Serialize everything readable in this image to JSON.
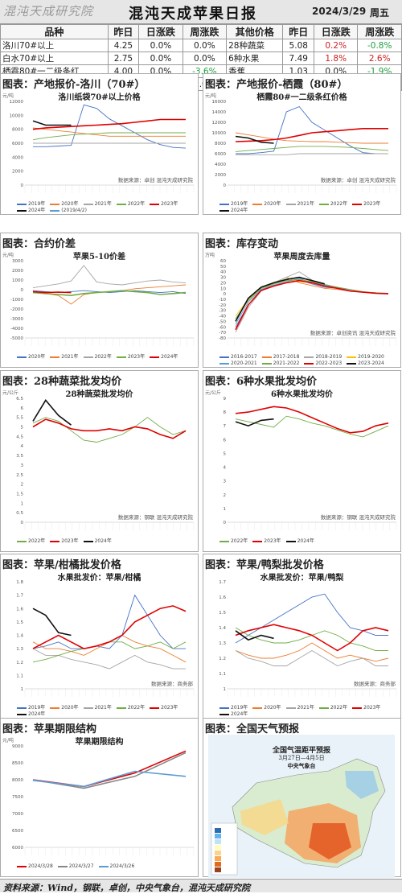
{
  "header": {
    "logo": "混沌天成研究院",
    "title": "混沌天成苹果日报",
    "date": "2024/3/29",
    "weekday": "周五"
  },
  "table": {
    "headers": [
      "品种",
      "昨日",
      "日涨跌",
      "周涨跌",
      "其他价格",
      "昨日",
      "日涨跌",
      "周涨跌"
    ],
    "rows": [
      [
        "洛川70#以上",
        "4.25",
        "0.0%",
        "0.0%",
        "28种蔬菜",
        "5.08",
        "0.2%",
        "-0.8%"
      ],
      [
        "白水70#以上",
        "2.75",
        "0.0%",
        "0.0%",
        "6种水果",
        "7.49",
        "1.8%",
        "2.6%"
      ],
      [
        "栖霞80#一二级条红",
        "4.00",
        "0.0%",
        "-3.6%",
        "香蕉",
        "1.03",
        "0.0%",
        "-1.9%"
      ],
      [
        "蓬莱80#一二级",
        "4.15",
        "0.0%",
        "0.0%",
        "红枣",
        "6.03",
        "0.0%",
        "0.0%"
      ]
    ]
  },
  "panels": [
    {
      "title": "图表：产地报价-洛川（70#）",
      "chart_title": "洛川纸袋70#以上价格",
      "unit": "元/吨",
      "source": "数据来源：卓创   混沌天成研究院",
      "legend": [
        "2019年",
        "2020年",
        "2021年",
        "2022年",
        "2023年",
        "2024年",
        "(2019/4/2)"
      ]
    },
    {
      "title": "图表：产地报价-栖霞（80#）",
      "chart_title": "栖霞80#一二级条红价格",
      "unit": "元/吨",
      "source": "数据来源：卓创   混沌天成研究院",
      "legend": [
        "2019年",
        "2020年",
        "2021年",
        "2022年",
        "2023年",
        "2024年"
      ]
    },
    {
      "title": "图表：合约价差",
      "chart_title": "苹果5-10价差",
      "unit": "元/吨",
      "source": "",
      "legend": [
        "2020年",
        "2021年",
        "2022年",
        "2023年",
        "2024年"
      ]
    },
    {
      "title": "图表：库存变动",
      "chart_title": "苹果周度去库量",
      "unit": "万吨",
      "source": "数据来源：卓创资讯   混沌天成研究院",
      "legend": [
        "2016-2017",
        "2017-2018",
        "2018-2019",
        "2019-2020",
        "2020-2021",
        "2021-2022",
        "2022-2023",
        "2023-2024"
      ]
    },
    {
      "title": "图表：28种蔬菜批发均价",
      "chart_title": "28种蔬菜批发均价",
      "unit": "元/公斤",
      "source": "数据来源：钢联   混沌天成研究院",
      "legend": [
        "2022年",
        "2023年",
        "2024年"
      ]
    },
    {
      "title": "图表：6种水果批发均价",
      "chart_title": "6种水果批发均价",
      "unit": "元/公斤",
      "source": "数据来源：钢联   混沌天成研究院",
      "legend": [
        "2022年",
        "2023年",
        "2024年"
      ]
    },
    {
      "title": "图表：苹果/柑橘批发价格",
      "chart_title": "水果批发价：苹果/柑橘",
      "unit": "",
      "source": "数据来源：商务部",
      "legend": [
        "2019年",
        "2020年",
        "2021年",
        "2022年",
        "2023年",
        "2024年"
      ]
    },
    {
      "title": "图表：苹果/鸭梨批发价格",
      "chart_title": "水果批发价：苹果/鸭梨",
      "unit": "",
      "source": "数据来源：商务部",
      "legend": [
        "2019年",
        "2020年",
        "2021年",
        "2022年",
        "2023年",
        "2024年"
      ]
    },
    {
      "title": "图表：苹果期限结构",
      "chart_title": "苹果期限结构",
      "unit": "元/吨",
      "source": "",
      "legend": [
        "2024/3/28",
        "2024/3/27",
        "2024/3/26"
      ]
    },
    {
      "title": "图表：全国天气预报",
      "chart_title": "全国气温距平预报",
      "subtitle": "3月27日—4月5日",
      "agency": "中央气象台",
      "unit": "",
      "source": "",
      "legend": []
    }
  ],
  "colors": {
    "y2019": "#4472c4",
    "y2020": "#ed7d31",
    "y2021": "#a5a5a5",
    "y2022": "#70ad47",
    "y2023": "#e00000",
    "y2024": "#111111",
    "alt": "#5b9bd5"
  },
  "chart_data": [
    {
      "type": "line",
      "title": "洛川纸袋70#以上价格",
      "ylim": [
        0,
        12000
      ],
      "yticks": [
        0,
        2000,
        4000,
        6000,
        8000,
        10000,
        12000
      ],
      "series": [
        {
          "name": "2019年",
          "values": [
            5500,
            5500,
            5600,
            5700,
            11500,
            11000,
            9500,
            8500,
            7500,
            6500,
            5800,
            5400,
            5300
          ]
        },
        {
          "name": "2020年",
          "values": [
            8200,
            8000,
            7800,
            7600,
            7400,
            7200,
            7000,
            7000,
            7000,
            7000,
            7000,
            7000,
            7000
          ]
        },
        {
          "name": "2021年",
          "values": [
            6000,
            6000,
            6000,
            6000,
            6000,
            6000,
            6000,
            6000,
            6000,
            6000,
            6000,
            6000,
            6000
          ]
        },
        {
          "name": "2022年",
          "values": [
            6500,
            6800,
            7000,
            7200,
            7300,
            7400,
            7500,
            7500,
            7500,
            7500,
            7500,
            7500,
            7500
          ]
        },
        {
          "name": "2023年",
          "values": [
            8000,
            8200,
            8300,
            8400,
            8500,
            8600,
            8700,
            8800,
            9000,
            9200,
            9400,
            9400,
            9400
          ]
        },
        {
          "name": "2024年",
          "values": [
            9200,
            8600,
            8600,
            8600,
            null,
            null,
            null,
            null,
            null,
            null,
            null,
            null,
            null
          ]
        }
      ]
    },
    {
      "type": "line",
      "title": "栖霞80#一二级条红价格",
      "ylim": [
        0,
        16000
      ],
      "yticks": [
        0,
        2000,
        4000,
        6000,
        8000,
        10000,
        12000,
        14000,
        16000
      ],
      "series": [
        {
          "name": "2019年",
          "values": [
            6000,
            6000,
            6200,
            6500,
            14000,
            15000,
            12000,
            10500,
            9000,
            7500,
            6200,
            6000,
            6000
          ]
        },
        {
          "name": "2020年",
          "values": [
            10000,
            9600,
            9200,
            8800,
            8500,
            8400,
            8300,
            8300,
            8200,
            8100,
            8000,
            8000,
            8000
          ]
        },
        {
          "name": "2021年",
          "values": [
            5800,
            5800,
            5800,
            5800,
            5800,
            6000,
            6000,
            6000,
            6000,
            6000,
            6000,
            6000,
            6000
          ]
        },
        {
          "name": "2022年",
          "values": [
            6400,
            6600,
            6800,
            7000,
            7200,
            7400,
            7400,
            7400,
            7300,
            7200,
            7000,
            6800,
            6600
          ]
        },
        {
          "name": "2023年",
          "values": [
            8300,
            8400,
            8500,
            8700,
            9000,
            9500,
            10000,
            10200,
            10400,
            10600,
            10800,
            10800,
            10800
          ]
        },
        {
          "name": "2024年",
          "values": [
            9300,
            9000,
            8200,
            8000,
            null,
            null,
            null,
            null,
            null,
            null,
            null,
            null,
            null
          ]
        }
      ]
    },
    {
      "type": "line",
      "title": "苹果5-10价差",
      "ylim": [
        -5000,
        3000
      ],
      "yticks": [
        -5000,
        -4000,
        -3000,
        -2000,
        -1000,
        0,
        1000,
        2000,
        3000
      ],
      "series": [
        {
          "name": "2020年",
          "values": [
            -100,
            -200,
            -300,
            -200,
            -100,
            -200,
            -300,
            -200,
            -100,
            -200,
            -300,
            -200,
            -400
          ]
        },
        {
          "name": "2021年",
          "values": [
            -300,
            -400,
            -600,
            -1500,
            -500,
            -300,
            -200,
            -100,
            100,
            200,
            300,
            400,
            500
          ]
        },
        {
          "name": "2022年",
          "values": [
            200,
            400,
            600,
            900,
            2500,
            800,
            600,
            500,
            700,
            900,
            1000,
            800,
            700
          ]
        },
        {
          "name": "2023年",
          "values": [
            -300,
            -400,
            -500,
            -600,
            -400,
            -300,
            -200,
            -100,
            -200,
            -300,
            -500,
            -400,
            -300
          ]
        },
        {
          "name": "2024年",
          "values": [
            -200,
            -300,
            -250,
            -300,
            null,
            null,
            null,
            null,
            null,
            null,
            null,
            null,
            null
          ]
        }
      ]
    },
    {
      "type": "line",
      "title": "苹果周度去库量",
      "ylim": [
        -80,
        60
      ],
      "yticks": [
        -80,
        -70,
        -60,
        -50,
        -40,
        -30,
        -20,
        -10,
        0,
        10,
        20,
        30,
        40,
        50,
        60
      ],
      "series": [
        {
          "name": "2016-2017",
          "values": [
            -60,
            -20,
            5,
            15,
            20,
            25,
            18,
            12,
            10,
            5,
            3,
            2,
            1
          ]
        },
        {
          "name": "2017-2018",
          "values": [
            -50,
            -10,
            10,
            20,
            30,
            20,
            15,
            10,
            8,
            5,
            3,
            2,
            0
          ]
        },
        {
          "name": "2018-2019",
          "values": [
            -70,
            -25,
            5,
            20,
            30,
            40,
            25,
            15,
            10,
            6,
            3,
            1,
            0
          ]
        },
        {
          "name": "2019-2020",
          "values": [
            -40,
            -10,
            10,
            18,
            25,
            22,
            20,
            15,
            10,
            5,
            3,
            1,
            0
          ]
        },
        {
          "name": "2020-2021",
          "values": [
            -55,
            -15,
            8,
            16,
            22,
            28,
            20,
            16,
            12,
            6,
            3,
            1,
            0
          ]
        },
        {
          "name": "2021-2022",
          "values": [
            -45,
            -12,
            10,
            18,
            24,
            26,
            22,
            17,
            12,
            8,
            4,
            2,
            0
          ]
        },
        {
          "name": "2022-2023",
          "values": [
            -65,
            -20,
            6,
            14,
            20,
            24,
            20,
            14,
            10,
            5,
            3,
            1,
            0
          ]
        },
        {
          "name": "2023-2024",
          "values": [
            -50,
            -8,
            12,
            20,
            26,
            30,
            24,
            18,
            null,
            null,
            null,
            null,
            null
          ]
        }
      ]
    },
    {
      "type": "line",
      "title": "28种蔬菜批发均价",
      "ylim": [
        0,
        6.5
      ],
      "yticks": [
        0,
        0.5,
        1,
        1.5,
        2,
        2.5,
        3,
        3.5,
        4,
        4.5,
        5,
        5.5,
        6,
        6.5
      ],
      "series": [
        {
          "name": "2022年",
          "values": [
            5.2,
            5.5,
            5.3,
            4.8,
            4.3,
            4.2,
            4.4,
            4.6,
            5.0,
            5.5,
            5.0,
            4.6,
            4.8
          ]
        },
        {
          "name": "2023年",
          "values": [
            5.0,
            5.4,
            5.2,
            4.9,
            4.8,
            4.8,
            4.9,
            4.8,
            5.0,
            4.9,
            4.6,
            4.4,
            4.8
          ]
        },
        {
          "name": "2024年",
          "values": [
            5.3,
            6.4,
            5.6,
            5.1,
            null,
            null,
            null,
            null,
            null,
            null,
            null,
            null,
            null
          ]
        }
      ]
    },
    {
      "type": "line",
      "title": "6种水果批发均价",
      "ylim": [
        0,
        9
      ],
      "yticks": [
        0,
        1,
        2,
        3,
        4,
        5,
        6,
        7,
        8,
        9
      ],
      "series": [
        {
          "name": "2022年",
          "values": [
            7.5,
            7.3,
            7.1,
            6.9,
            7.7,
            7.5,
            7.2,
            7.0,
            6.7,
            6.4,
            6.2,
            6.6,
            7.0
          ]
        },
        {
          "name": "2023年",
          "values": [
            7.9,
            8.0,
            8.2,
            8.4,
            8.3,
            8.0,
            7.6,
            7.2,
            6.8,
            6.5,
            6.6,
            7.0,
            7.2
          ]
        },
        {
          "name": "2024年",
          "values": [
            7.3,
            7.0,
            7.4,
            7.5,
            null,
            null,
            null,
            null,
            null,
            null,
            null,
            null,
            null
          ]
        }
      ]
    },
    {
      "type": "line",
      "title": "水果批发价：苹果/柑橘",
      "ylim": [
        1,
        1.8
      ],
      "yticks": [
        1,
        1.1,
        1.2,
        1.3,
        1.4,
        1.5,
        1.6,
        1.7,
        1.8
      ],
      "series": [
        {
          "name": "2019年",
          "values": [
            1.3,
            1.32,
            1.35,
            1.3,
            1.3,
            1.32,
            1.3,
            1.4,
            1.7,
            1.55,
            1.4,
            1.3,
            1.3
          ]
        },
        {
          "name": "2020年",
          "values": [
            1.35,
            1.3,
            1.3,
            1.28,
            1.25,
            1.3,
            1.35,
            1.4,
            1.35,
            1.32,
            1.3,
            1.25,
            1.2
          ]
        },
        {
          "name": "2021年",
          "values": [
            1.3,
            1.25,
            1.25,
            1.22,
            1.2,
            1.18,
            1.15,
            1.2,
            1.25,
            1.2,
            1.18,
            1.15,
            1.15
          ]
        },
        {
          "name": "2022年",
          "values": [
            1.2,
            1.22,
            1.25,
            1.28,
            1.3,
            1.32,
            1.35,
            1.35,
            1.3,
            1.32,
            1.35,
            1.3,
            1.35
          ]
        },
        {
          "name": "2023年",
          "values": [
            1.3,
            1.35,
            1.4,
            1.35,
            1.3,
            1.32,
            1.35,
            1.4,
            1.5,
            1.55,
            1.6,
            1.62,
            1.58
          ]
        },
        {
          "name": "2024年",
          "values": [
            1.6,
            1.55,
            1.42,
            1.4,
            null,
            null,
            null,
            null,
            null,
            null,
            null,
            null,
            null
          ]
        }
      ]
    },
    {
      "type": "line",
      "title": "水果批发价：苹果/鸭梨",
      "ylim": [
        1,
        1.7
      ],
      "yticks": [
        1,
        1.1,
        1.2,
        1.3,
        1.4,
        1.5,
        1.6,
        1.7
      ],
      "series": [
        {
          "name": "2019年",
          "values": [
            1.3,
            1.35,
            1.4,
            1.45,
            1.5,
            1.55,
            1.6,
            1.62,
            1.5,
            1.4,
            1.38,
            1.35,
            1.35
          ]
        },
        {
          "name": "2020年",
          "values": [
            1.25,
            1.22,
            1.2,
            1.2,
            1.22,
            1.25,
            1.3,
            1.25,
            1.2,
            1.22,
            1.2,
            1.18,
            1.2
          ]
        },
        {
          "name": "2021年",
          "values": [
            1.25,
            1.2,
            1.18,
            1.15,
            1.15,
            1.2,
            1.25,
            1.2,
            1.15,
            1.18,
            1.2,
            1.15,
            1.15
          ]
        },
        {
          "name": "2022年",
          "values": [
            1.4,
            1.35,
            1.32,
            1.3,
            1.3,
            1.32,
            1.35,
            1.38,
            1.35,
            1.3,
            1.28,
            1.25,
            1.25
          ]
        },
        {
          "name": "2023年",
          "values": [
            1.35,
            1.38,
            1.4,
            1.42,
            1.4,
            1.38,
            1.35,
            1.3,
            1.25,
            1.3,
            1.38,
            1.4,
            1.38
          ]
        },
        {
          "name": "2024年",
          "values": [
            1.38,
            1.32,
            1.35,
            1.33,
            null,
            null,
            null,
            null,
            null,
            null,
            null,
            null,
            null
          ]
        }
      ]
    },
    {
      "type": "line",
      "title": "苹果期限结构",
      "ylim": [
        6000,
        9000
      ],
      "yticks": [
        6000,
        6500,
        7000,
        7500,
        8000,
        8500,
        9000
      ],
      "series": [
        {
          "name": "2024/3/28",
          "values": [
            8000,
            7800,
            8200,
            8850
          ]
        },
        {
          "name": "2024/3/27",
          "values": [
            8000,
            7750,
            8100,
            8800
          ]
        },
        {
          "name": "2024/3/26",
          "values": [
            7980,
            7800,
            8250,
            8100
          ]
        }
      ]
    }
  ]
}
